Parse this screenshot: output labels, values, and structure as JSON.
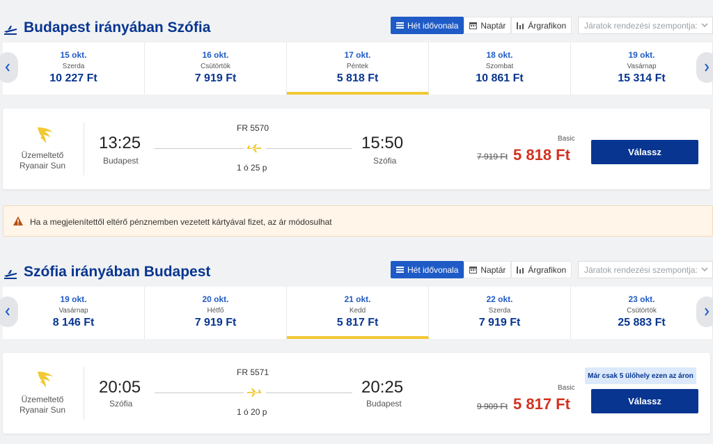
{
  "outbound": {
    "title": "Budapest irányában Szófia",
    "view_tabs": [
      "Hét idővonala",
      "Naptár",
      "Árgrafikon"
    ],
    "sort_placeholder": "Járatok rendezési szempontja:",
    "dates": [
      {
        "date": "15 okt.",
        "weekday": "Szerda",
        "price": "10 227 Ft"
      },
      {
        "date": "16 okt.",
        "weekday": "Csütörtök",
        "price": "7 919 Ft"
      },
      {
        "date": "17 okt.",
        "weekday": "Péntek",
        "price": "5 818 Ft"
      },
      {
        "date": "18 okt.",
        "weekday": "Szombat",
        "price": "10 861 Ft"
      },
      {
        "date": "19 okt.",
        "weekday": "Vasárnap",
        "price": "15 314 Ft"
      }
    ],
    "flight": {
      "operator_label": "Üzemeltető",
      "operator_name": "Ryanair Sun",
      "depart_time": "13:25",
      "depart_city": "Budapest",
      "flight_number": "FR 5570",
      "duration": "1 ó 25 p",
      "arrive_time": "15:50",
      "arrive_city": "Szófia",
      "fare_type": "Basic",
      "old_price": "7 919 Ft",
      "price": "5 818 Ft",
      "select_label": "Válassz"
    }
  },
  "warning_text": "Ha a megjelenítettől eltérő pénznemben vezetett kártyával fizet, az ár módosulhat",
  "inbound": {
    "title": "Szófia irányában Budapest",
    "view_tabs": [
      "Hét idővonala",
      "Naptár",
      "Árgrafikon"
    ],
    "sort_placeholder": "Járatok rendezési szempontja:",
    "dates": [
      {
        "date": "19 okt.",
        "weekday": "Vasárnap",
        "price": "8 146 Ft"
      },
      {
        "date": "20 okt.",
        "weekday": "Hétfő",
        "price": "7 919 Ft"
      },
      {
        "date": "21 okt.",
        "weekday": "Kedd",
        "price": "5 817 Ft"
      },
      {
        "date": "22 okt.",
        "weekday": "Szerda",
        "price": "7 919 Ft"
      },
      {
        "date": "23 okt.",
        "weekday": "Csütörtök",
        "price": "25 883 Ft"
      }
    ],
    "flight": {
      "operator_label": "Üzemeltető",
      "operator_name": "Ryanair Sun",
      "depart_time": "20:05",
      "depart_city": "Szófia",
      "flight_number": "FR 5571",
      "duration": "1 ó 20 p",
      "arrive_time": "20:25",
      "arrive_city": "Budapest",
      "fare_type": "Basic",
      "old_price": "9 909 Ft",
      "price": "5 817 Ft",
      "seats_badge": "Már csak 5 ülőhely ezen az áron",
      "select_label": "Válassz"
    }
  },
  "icons": {
    "header_plane": "plane-takeoff-icon",
    "week_view": "list-icon",
    "calendar": "calendar-icon",
    "price_chart": "bar-chart-icon",
    "operator_logo": "ryanair-harp-logo",
    "flight_plane": "plane-icon",
    "warning": "warning-triangle-icon"
  },
  "colors": {
    "brand_blue": "#073590",
    "accent_blue": "#1f5bc6",
    "price_red": "#d3311f",
    "selected_underline": "#f1c933"
  }
}
